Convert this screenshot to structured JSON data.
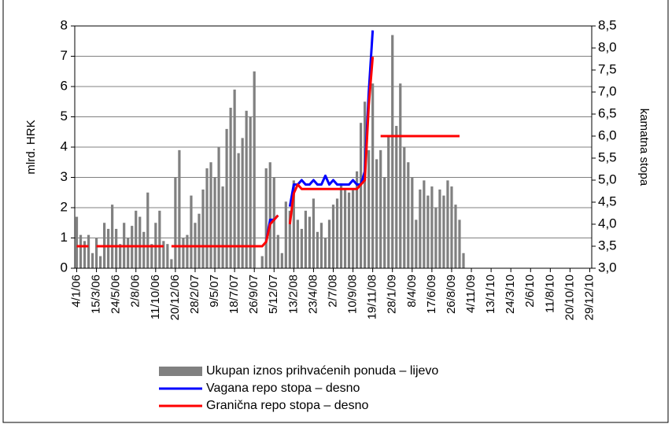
{
  "chart_data": {
    "type": "bar",
    "y_label": "mlrd. HRK",
    "y2_label": "kamatna stopa",
    "categories": [
      "4/1/06",
      null,
      null,
      null,
      null,
      "15/3/06",
      null,
      null,
      null,
      null,
      "24/5/06",
      null,
      null,
      null,
      null,
      "2/8/06",
      null,
      null,
      null,
      null,
      "11/10/06",
      null,
      null,
      null,
      null,
      "20/12/06",
      null,
      null,
      null,
      null,
      "28/2/07",
      null,
      null,
      null,
      null,
      "9/5/07",
      null,
      null,
      null,
      null,
      "18/7/07",
      null,
      null,
      null,
      null,
      "26/9/07",
      null,
      null,
      null,
      null,
      "5/12/07",
      null,
      null,
      null,
      null,
      "13/2/08",
      null,
      null,
      null,
      null,
      "23/4/08",
      null,
      null,
      null,
      null,
      "2/7/08",
      null,
      null,
      null,
      null,
      "10/9/08",
      null,
      null,
      null,
      null,
      "19/11/08",
      null,
      null,
      null,
      null,
      "28/1/09",
      null,
      null,
      null,
      null,
      "8/4/09",
      null,
      null,
      null,
      null,
      "17/6/09",
      null,
      null,
      null,
      null,
      "26/8/09",
      null,
      null,
      null,
      null,
      "4/11/09",
      null,
      null,
      null,
      null,
      "13/1/10",
      null,
      null,
      null,
      null,
      "24/3/10",
      null,
      null,
      null,
      null,
      "2/6/10",
      null,
      null,
      null,
      null,
      "11/8/10",
      null,
      null,
      null,
      null,
      "20/10/10",
      null,
      null,
      null,
      null,
      "29/12/10"
    ],
    "series": [
      {
        "name": "Ukupan iznos prihvaćenih ponuda – lijevo",
        "type": "bar",
        "color": "#808080",
        "values": [
          1.7,
          1.1,
          0.9,
          1.1,
          0.5,
          1.0,
          0.4,
          1.5,
          1.3,
          2.1,
          1.3,
          0.8,
          1.5,
          1.0,
          1.4,
          1.9,
          1.7,
          1.2,
          2.5,
          0.8,
          1.5,
          1.9,
          0.9,
          0.8,
          0.3,
          3.0,
          3.9,
          1.0,
          1.1,
          2.4,
          1.5,
          1.8,
          2.6,
          3.3,
          3.5,
          3.0,
          4.0,
          2.7,
          4.6,
          5.3,
          5.9,
          3.8,
          4.3,
          5.2,
          5.0,
          6.5,
          null,
          0.4,
          3.3,
          3.5,
          3.0,
          1.1,
          0.5,
          2.2,
          1.9,
          2.9,
          1.6,
          1.3,
          1.9,
          1.7,
          2.3,
          1.2,
          1.5,
          1.0,
          1.6,
          2.1,
          2.3,
          2.8,
          2.6,
          2.5,
          2.6,
          3.2,
          4.8,
          5.5,
          3.9,
          6.1,
          3.6,
          3.9,
          3.0,
          4.4,
          7.7,
          4.7,
          6.1,
          4.0,
          3.5,
          3.0,
          1.6,
          2.6,
          2.9,
          2.4,
          2.7,
          2.0,
          2.6,
          2.4,
          2.9,
          2.7,
          2.1,
          1.6,
          0.5,
          null,
          null,
          null,
          null,
          null,
          null,
          null,
          null,
          null,
          null,
          null,
          null,
          null,
          null,
          null,
          null,
          null,
          null,
          null,
          null,
          null,
          null,
          null,
          null,
          null,
          null,
          null,
          null,
          null,
          null,
          null,
          null
        ]
      },
      {
        "name": "Vagana repo stopa – desno",
        "type": "line",
        "axis": "y2",
        "color": "#0000ff",
        "values": [
          null,
          null,
          null,
          null,
          null,
          null,
          null,
          null,
          null,
          null,
          null,
          null,
          null,
          null,
          null,
          null,
          null,
          null,
          null,
          null,
          null,
          null,
          null,
          null,
          null,
          null,
          null,
          null,
          null,
          null,
          null,
          null,
          null,
          null,
          null,
          null,
          null,
          null,
          null,
          null,
          null,
          null,
          null,
          null,
          null,
          null,
          null,
          null,
          3.6,
          4.1,
          4.1,
          4.2,
          null,
          null,
          4.4,
          4.9,
          4.9,
          5.0,
          4.9,
          4.9,
          5.0,
          4.9,
          4.9,
          5.1,
          4.9,
          5.0,
          4.9,
          4.9,
          4.9,
          4.9,
          5.0,
          4.9,
          4.9,
          5.2,
          7.0,
          8.4,
          null,
          null,
          null,
          null,
          null,
          null,
          null,
          null,
          null,
          null,
          null,
          null,
          null,
          null,
          null,
          null,
          null,
          null,
          null,
          null,
          null,
          null,
          null,
          null,
          null,
          null,
          null,
          null,
          null,
          null,
          null,
          null,
          null,
          null,
          null,
          null,
          null,
          null,
          null,
          null,
          null,
          null,
          null,
          null,
          null,
          null,
          null,
          null,
          null,
          null,
          null,
          null,
          null,
          null,
          null
        ]
      },
      {
        "name": "Granična repo stopa – desno",
        "type": "line",
        "axis": "y2",
        "color": "#ff0000",
        "values": [
          3.5,
          3.5,
          3.5,
          3.5,
          null,
          3.5,
          3.5,
          3.5,
          3.5,
          3.5,
          3.5,
          3.5,
          3.5,
          3.5,
          3.5,
          3.5,
          3.5,
          3.5,
          3.5,
          3.5,
          3.5,
          3.5,
          3.5,
          null,
          3.5,
          3.5,
          3.5,
          3.5,
          3.5,
          3.5,
          3.5,
          3.5,
          3.5,
          3.5,
          3.5,
          3.5,
          3.5,
          3.5,
          3.5,
          3.5,
          3.5,
          3.5,
          3.5,
          3.5,
          3.5,
          3.5,
          3.5,
          3.5,
          3.6,
          4.0,
          4.1,
          4.2,
          null,
          null,
          4.0,
          4.7,
          4.9,
          4.8,
          4.8,
          4.8,
          4.8,
          4.8,
          4.8,
          4.8,
          4.8,
          4.8,
          4.8,
          4.8,
          4.8,
          4.8,
          4.8,
          4.8,
          4.9,
          5.0,
          6.7,
          7.8,
          null,
          6.0,
          6.0,
          6.0,
          6.0,
          6.0,
          6.0,
          6.0,
          6.0,
          6.0,
          6.0,
          6.0,
          6.0,
          6.0,
          6.0,
          6.0,
          6.0,
          6.0,
          6.0,
          6.0,
          6.0,
          6.0,
          null,
          null,
          null,
          null,
          null,
          null,
          null,
          null,
          null,
          null,
          null,
          null,
          null,
          null,
          null,
          null,
          null,
          null,
          null,
          null,
          null,
          null,
          null,
          null,
          null,
          null,
          null,
          null,
          null,
          null,
          null,
          null,
          null
        ]
      }
    ],
    "ylim": [
      0,
      8
    ],
    "yticks": [
      0,
      1,
      2,
      3,
      4,
      5,
      6,
      7,
      8
    ],
    "y2lim": [
      3,
      8.5
    ],
    "y2ticks": [
      {
        "value": 3,
        "label": "3,0"
      },
      {
        "value": 3.5,
        "label": "3,5"
      },
      {
        "value": 4,
        "label": "4,0"
      },
      {
        "value": 4.5,
        "label": "4,5"
      },
      {
        "value": 5,
        "label": "5,0"
      },
      {
        "value": 5.5,
        "label": "5,5"
      },
      {
        "value": 6,
        "label": "6,0"
      },
      {
        "value": 6.5,
        "label": "6,5"
      },
      {
        "value": 7,
        "label": "7,0"
      },
      {
        "value": 7.5,
        "label": "7,5"
      },
      {
        "value": 8,
        "label": "8,0"
      },
      {
        "value": 8.5,
        "label": "8,5"
      }
    ],
    "grid": true,
    "legend": "bottom"
  }
}
